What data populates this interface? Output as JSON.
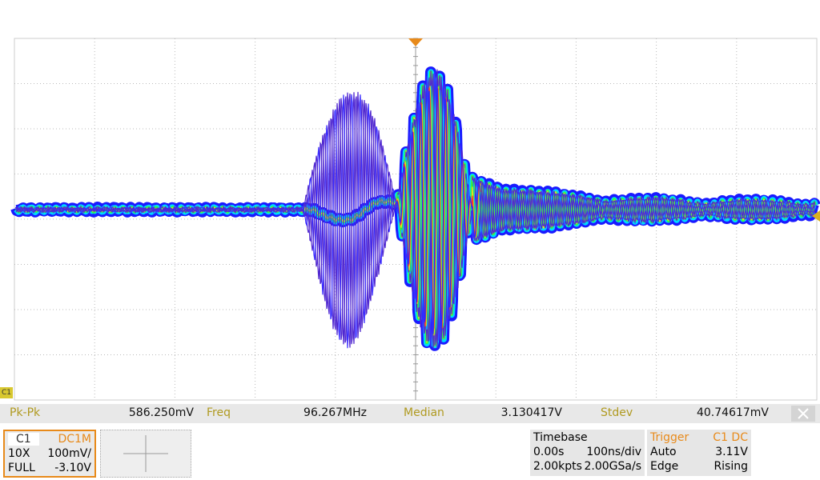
{
  "channel": {
    "name": "C1",
    "coupling": "DC1M",
    "probe": "10X",
    "scale": "100mV/",
    "mode": "FULL",
    "offset": "-3.10V"
  },
  "measurements": [
    {
      "label": "Pk-Pk",
      "value": "586.250mV"
    },
    {
      "label": "Freq",
      "value": "96.267MHz"
    },
    {
      "label": "Median",
      "value": "3.130417V"
    },
    {
      "label": "Stdev",
      "value": "40.74617mV"
    }
  ],
  "timebase": {
    "title": "Timebase",
    "delay": "0.00s",
    "scale": "100ns/div",
    "points": "2.00kpts",
    "sample_rate": "2.00GSa/s"
  },
  "trigger": {
    "title": "Trigger",
    "source": "C1 DC",
    "mode": "Auto",
    "level": "3.11V",
    "type": "Edge",
    "slope": "Rising"
  }
}
